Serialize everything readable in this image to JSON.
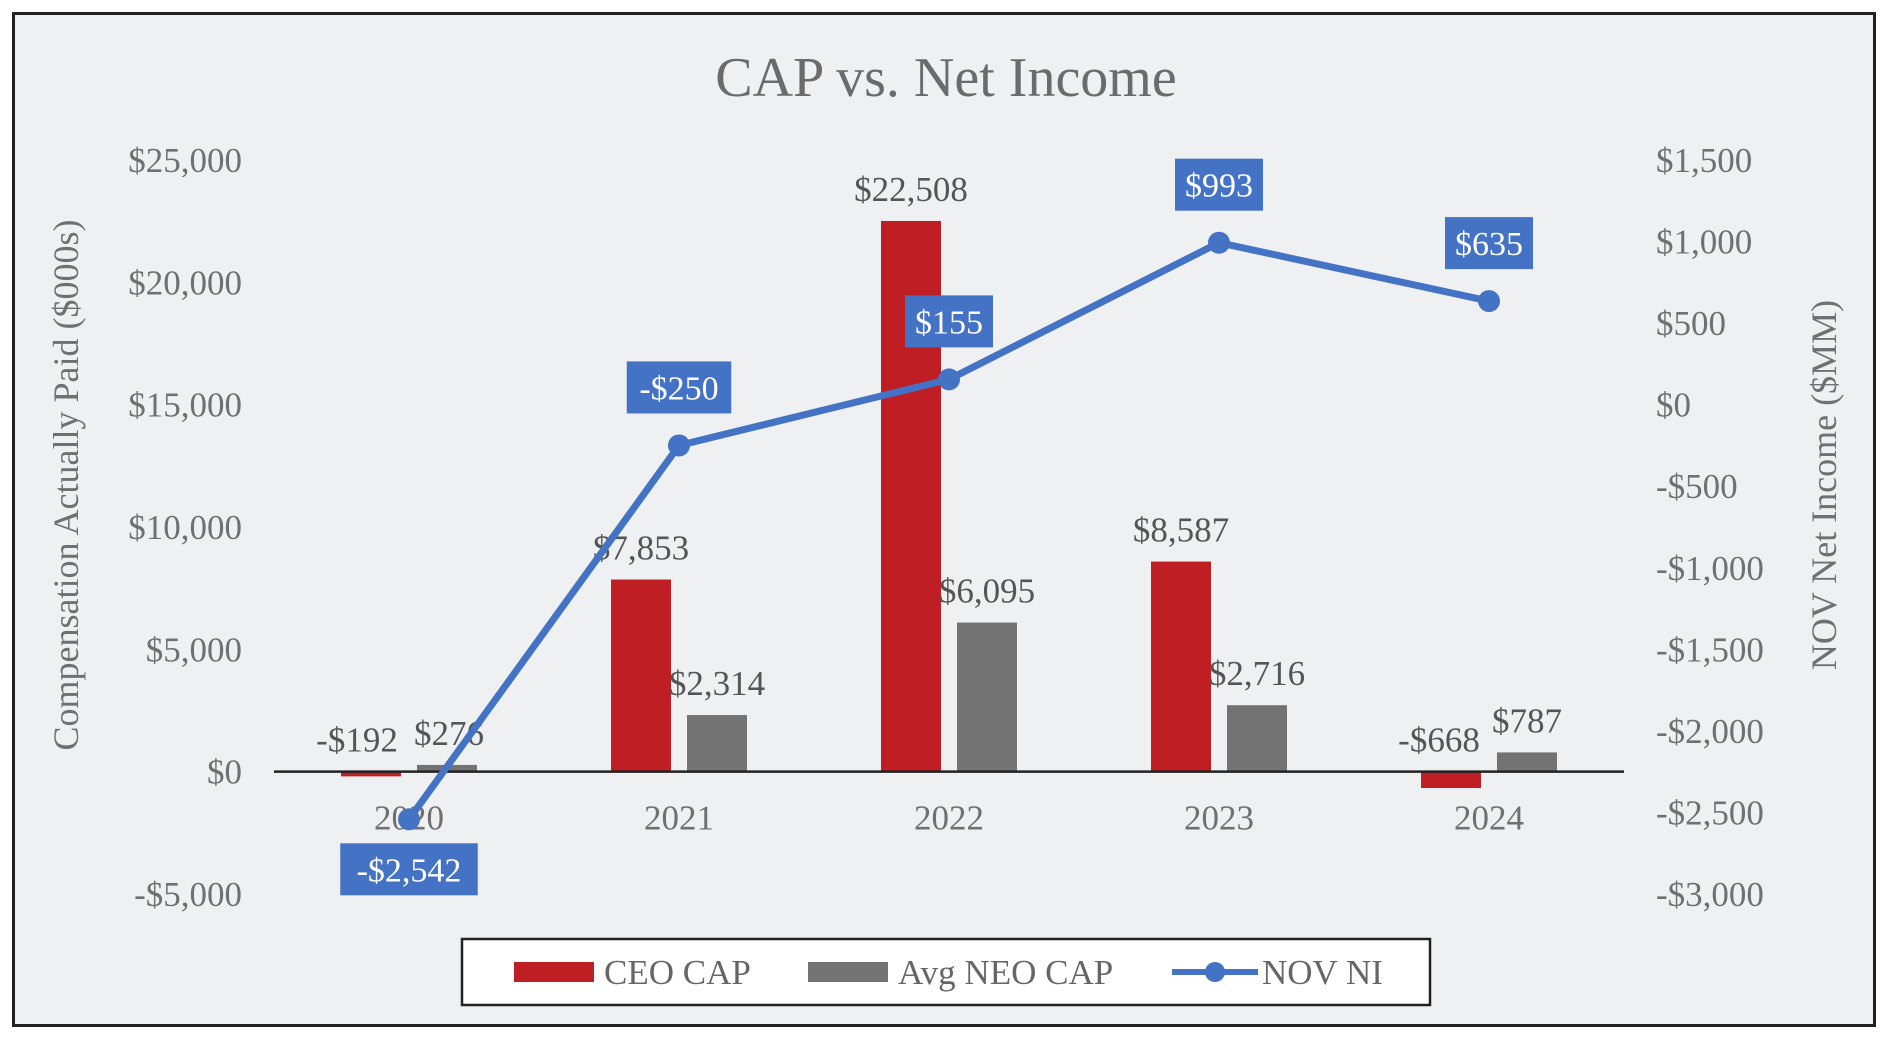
{
  "chart_data": {
    "type": "bar",
    "title": "CAP vs. Net Income",
    "categories": [
      "2020",
      "2021",
      "2022",
      "2023",
      "2024"
    ],
    "ylabel": "Compensation Actually Paid ($000s)",
    "y2label": "NOV Net Income ($MM)",
    "ylim": [
      -5000,
      25000
    ],
    "y2lim": [
      -3000,
      1500
    ],
    "y_ticks": [
      25000,
      20000,
      15000,
      10000,
      5000,
      0,
      -5000
    ],
    "y_tick_labels": [
      "$25,000",
      "$20,000",
      "$15,000",
      "$10,000",
      "$5,000",
      "$0",
      "-$5,000"
    ],
    "y2_ticks": [
      1500,
      1000,
      500,
      0,
      -500,
      -1000,
      -1500,
      -2000,
      -2500,
      -3000
    ],
    "y2_tick_labels": [
      "$1,500",
      "$1,000",
      "$500",
      "$0",
      "-$500",
      "-$1,000",
      "-$1,500",
      "-$2,000",
      "-$2,500",
      "-$3,000"
    ],
    "series": [
      {
        "name": "CEO CAP",
        "type": "bar",
        "axis": "left",
        "color": "#be1e24",
        "values": [
          -192,
          7853,
          22508,
          8587,
          -668
        ],
        "labels": [
          "-$192",
          "$7,853",
          "$22,508",
          "$8,587",
          "-$668"
        ]
      },
      {
        "name": "Avg NEO CAP",
        "type": "bar",
        "axis": "left",
        "color": "#737373",
        "values": [
          276,
          2314,
          6095,
          2716,
          787
        ],
        "labels": [
          "$276",
          "$2,314",
          "$6,095",
          "$2,716",
          "$787"
        ]
      },
      {
        "name": "NOV NI",
        "type": "line",
        "axis": "right",
        "color": "#4472c4",
        "values": [
          -2542,
          -250,
          155,
          993,
          635
        ],
        "labels": [
          "-$2,542",
          "-$250",
          "$155",
          "$993",
          "$635"
        ]
      }
    ],
    "legend": {
      "position": "bottom",
      "entries": [
        "CEO CAP",
        "Avg NEO CAP",
        "NOV NI"
      ]
    }
  }
}
